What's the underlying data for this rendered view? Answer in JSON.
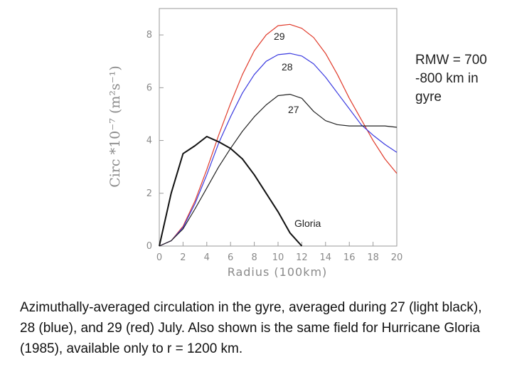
{
  "chart_data": {
    "type": "line",
    "xlabel": "Radius (100km)",
    "ylabel": "Circ *10⁻⁷ (m²s⁻¹)",
    "xlim": [
      0,
      20
    ],
    "ylim": [
      0,
      9
    ],
    "xticks": [
      "0",
      "2",
      "4",
      "6",
      "8",
      "10",
      "12",
      "14",
      "16",
      "18",
      "20"
    ],
    "yticks": [
      "0",
      "2",
      "4",
      "6",
      "8"
    ],
    "grid": false,
    "series": [
      {
        "name": "29",
        "color": "#e03a2a",
        "x": [
          0,
          1,
          2,
          3,
          4,
          5,
          6,
          7,
          8,
          9,
          10,
          11,
          12,
          13,
          14,
          15,
          16,
          17,
          18,
          19,
          20
        ],
        "y": [
          0,
          0.2,
          0.75,
          1.7,
          2.9,
          4.2,
          5.4,
          6.5,
          7.4,
          8.0,
          8.35,
          8.4,
          8.25,
          7.9,
          7.3,
          6.5,
          5.6,
          4.8,
          4.0,
          3.3,
          2.75
        ]
      },
      {
        "name": "28",
        "color": "#3a3ae0",
        "x": [
          0,
          1,
          2,
          3,
          4,
          5,
          6,
          7,
          8,
          9,
          10,
          11,
          12,
          13,
          14,
          15,
          16,
          17,
          18,
          19,
          20
        ],
        "y": [
          0,
          0.2,
          0.7,
          1.6,
          2.7,
          3.9,
          4.9,
          5.8,
          6.5,
          7.0,
          7.25,
          7.3,
          7.2,
          6.9,
          6.4,
          5.8,
          5.2,
          4.6,
          4.2,
          3.85,
          3.55
        ]
      },
      {
        "name": "27",
        "color": "#222222",
        "x": [
          0,
          1,
          2,
          3,
          4,
          5,
          6,
          7,
          8,
          9,
          10,
          11,
          12,
          13,
          14,
          15,
          16,
          17,
          18,
          19,
          20
        ],
        "y": [
          0,
          0.2,
          0.65,
          1.4,
          2.2,
          3.0,
          3.7,
          4.35,
          4.9,
          5.35,
          5.7,
          5.75,
          5.6,
          5.1,
          4.75,
          4.6,
          4.55,
          4.55,
          4.55,
          4.55,
          4.5
        ]
      },
      {
        "name": "Gloria",
        "color": "#111111",
        "x": [
          0,
          1,
          2,
          3,
          4,
          5,
          6,
          7,
          8,
          9,
          10,
          11,
          12
        ],
        "y": [
          0,
          2.0,
          3.5,
          3.8,
          4.15,
          3.95,
          3.7,
          3.3,
          2.7,
          2.0,
          1.3,
          0.5,
          0.0
        ]
      }
    ],
    "annotations": [
      {
        "text": "29",
        "series": "29"
      },
      {
        "text": "28",
        "series": "28"
      },
      {
        "text": "27",
        "series": "27"
      },
      {
        "text": "Gloria",
        "series": "Gloria"
      }
    ]
  },
  "note": "RMW = 700 -800 km in gyre",
  "caption": "Azimuthally-averaged circulation in the gyre, averaged during 27 (light black), 28 (blue), and 29 (red) July. Also shown is the same field for Hurricane Gloria (1985), available only to r = 1200 km."
}
